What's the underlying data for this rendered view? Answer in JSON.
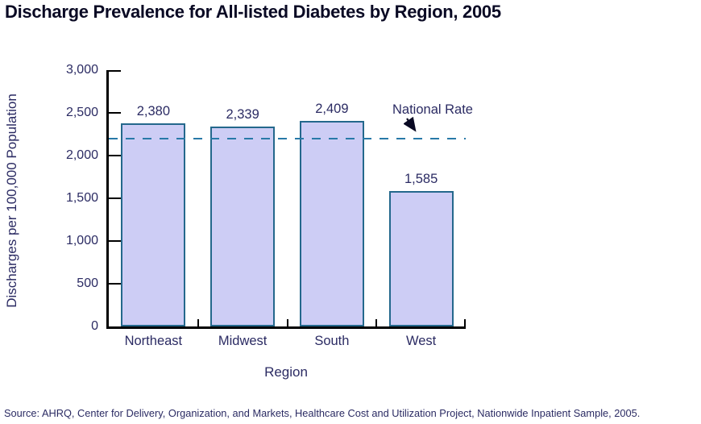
{
  "title": "Discharge Prevalence for All-listed Diabetes by Region, 2005",
  "source_note": "Source:  AHRQ, Center for Delivery, Organization, and Markets, Healthcare Cost and Utilization Project, Nationwide Inpatient Sample, 2005.",
  "chart_data": {
    "type": "bar",
    "title": "Discharge Prevalence for All-listed Diabetes by Region, 2005",
    "categories": [
      "Northeast",
      "Midwest",
      "South",
      "West"
    ],
    "values": [
      2380,
      2339,
      2409,
      1585
    ],
    "value_labels": [
      "2,380",
      "2,339",
      "2,409",
      "1,585"
    ],
    "xlabel": "Region",
    "ylabel": "Discharges per 100,000 Population",
    "ylim": [
      0,
      3000
    ],
    "yticks": [
      0,
      500,
      1000,
      1500,
      2000,
      2500,
      3000
    ],
    "ytick_labels": [
      "0",
      "500",
      "1,000",
      "1,500",
      "2,000",
      "2,500",
      "3,000"
    ],
    "grid": false,
    "legend": "none",
    "reference_line": {
      "label": "National Rate",
      "value": 2200,
      "style": "dashed"
    },
    "colors": {
      "bar_fill": "#CDCDF5",
      "bar_border": "#24688C",
      "reference_line": "#2879A8",
      "axis": "#000000",
      "label_text": "#2B2B63",
      "title_text": "#0A0A24",
      "background": "#FFFFFF"
    }
  }
}
